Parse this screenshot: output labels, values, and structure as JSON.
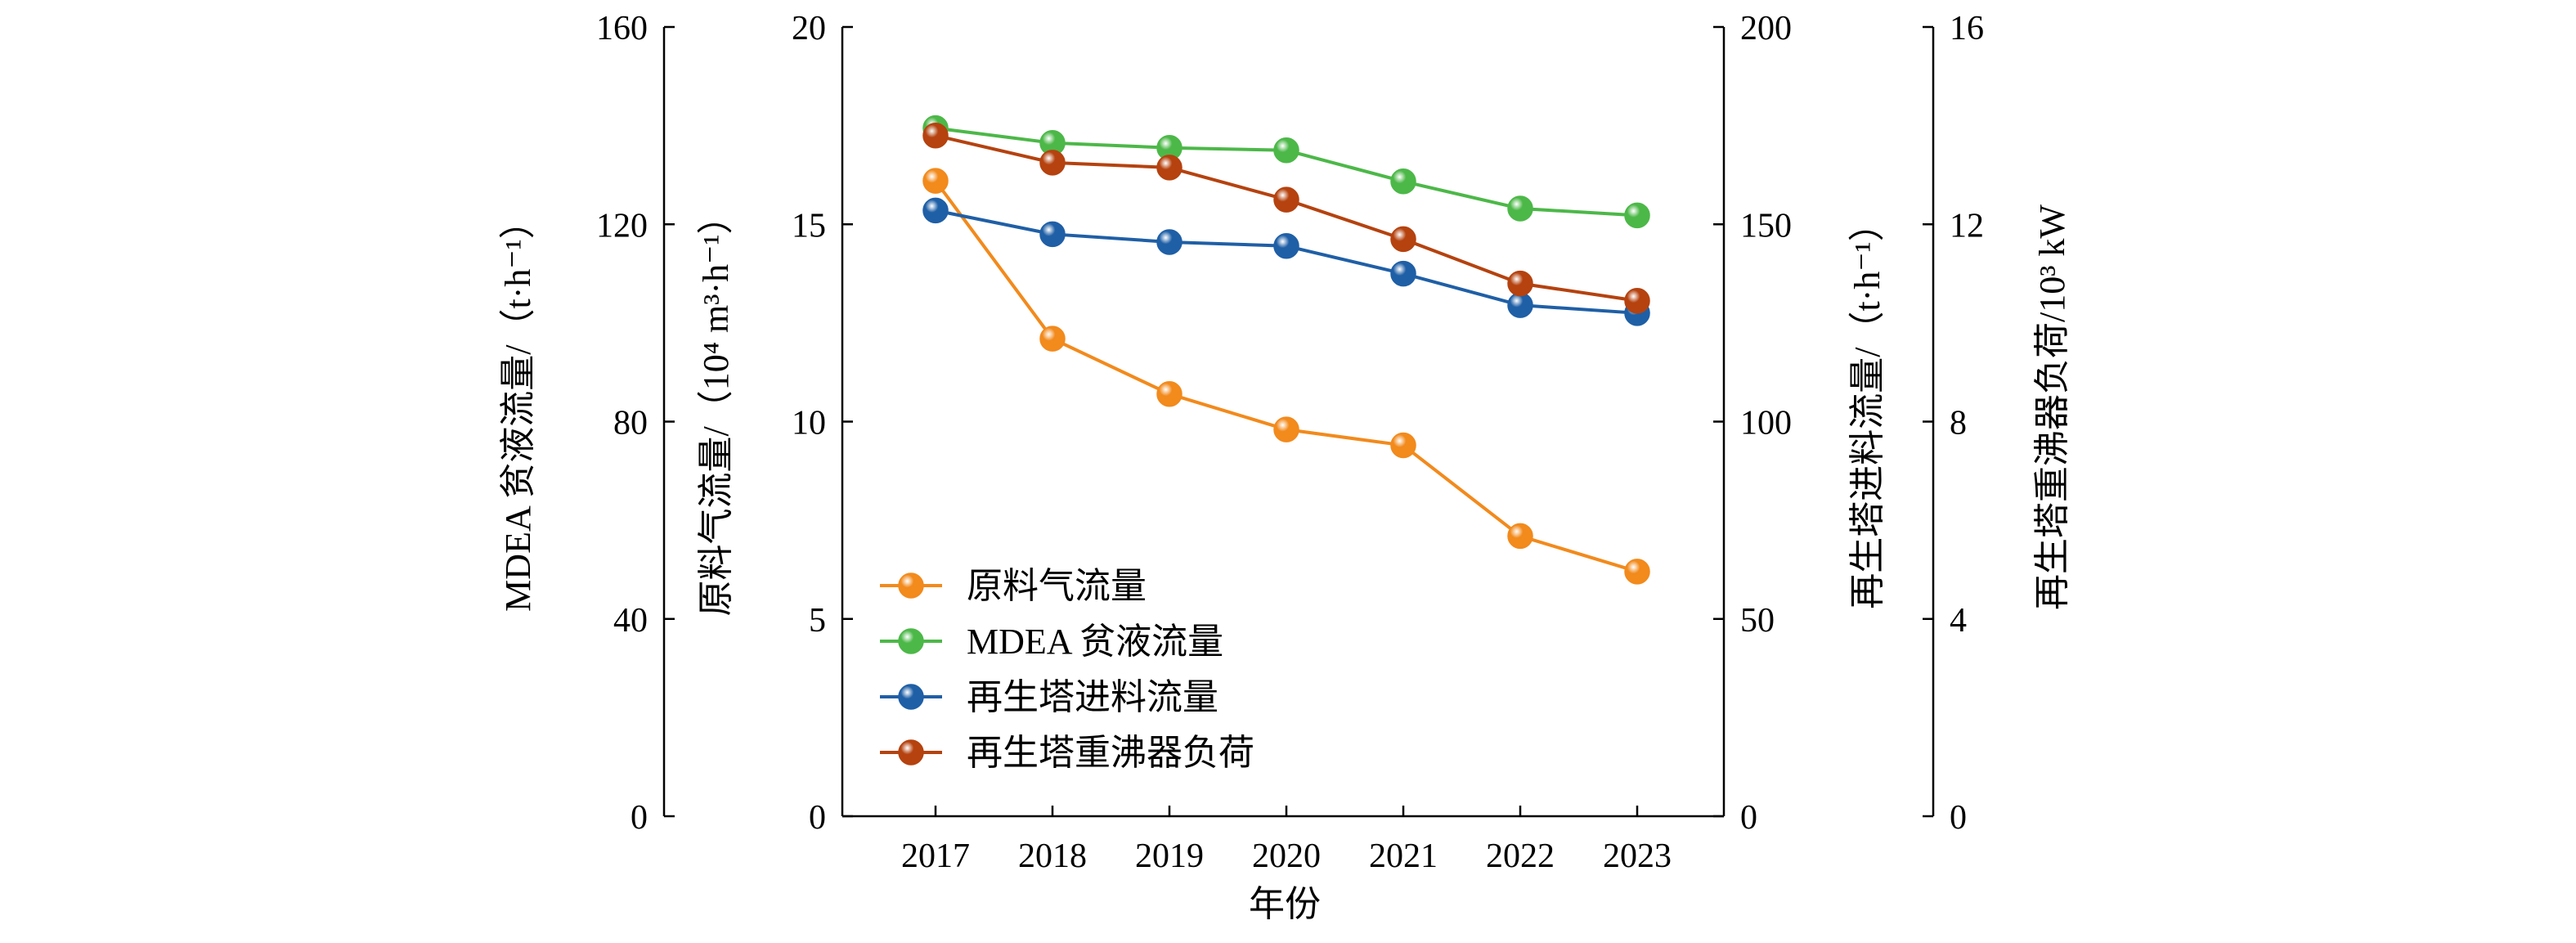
{
  "chart_data": {
    "type": "line",
    "categories": [
      "2017",
      "2018",
      "2019",
      "2020",
      "2021",
      "2022",
      "2023"
    ],
    "xlabel": "年份",
    "axes": {
      "left_outer": {
        "label": "MDEA 贫液流量/（t·h⁻¹）",
        "range": [
          0,
          160
        ],
        "ticks": [
          0,
          40,
          80,
          120,
          160
        ]
      },
      "left_inner": {
        "label": "原料气流量/（10⁴ m³·h⁻¹）",
        "range": [
          0,
          20
        ],
        "ticks": [
          0,
          5,
          10,
          15,
          20
        ]
      },
      "right_inner": {
        "label": "再生塔进料流量/（t·h⁻¹）",
        "range": [
          0,
          200
        ],
        "ticks": [
          0,
          50,
          100,
          150,
          200
        ]
      },
      "right_outer": {
        "label": "再生塔重沸器负荷/10³ kW",
        "range": [
          0,
          16
        ],
        "ticks": [
          0,
          4,
          8,
          12,
          16
        ]
      }
    },
    "series": [
      {
        "name": "原料气流量",
        "axis": "left_inner",
        "color": "#f28a1c",
        "values": [
          16.1,
          12.1,
          10.7,
          9.8,
          9.4,
          7.1,
          6.2
        ]
      },
      {
        "name": "MDEA 贫液流量",
        "axis": "left_outer",
        "color": "#4cb848",
        "values": [
          139.5,
          136.5,
          135.5,
          135.0,
          128.7,
          123.2,
          121.8
        ]
      },
      {
        "name": "再生塔进料流量",
        "axis": "right_inner",
        "color": "#1f5fa6",
        "values": [
          153.5,
          147.5,
          145.5,
          144.5,
          137.5,
          129.5,
          127.5
        ]
      },
      {
        "name": "再生塔重沸器负荷",
        "axis": "right_outer",
        "color": "#b5420f",
        "values": [
          13.8,
          13.25,
          13.15,
          12.5,
          11.7,
          10.8,
          10.45
        ]
      }
    ],
    "legend_position": "bottom-left",
    "grid": false
  }
}
